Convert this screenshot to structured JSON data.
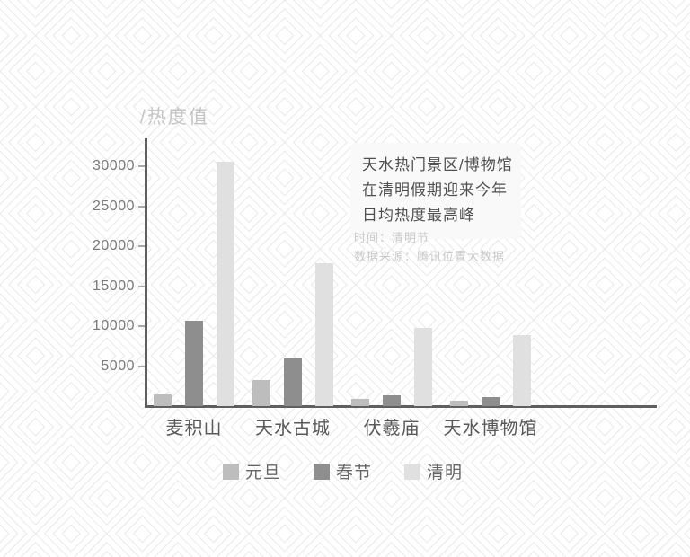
{
  "colors": {
    "background": "#ffffff",
    "pattern_line": "#e9e9e9",
    "axis": "#5f5f5f",
    "tick": "#a8a8a8",
    "tick_label": "#7a7a7a",
    "category_label": "#595959",
    "title": "#c5c5c5",
    "legend_label": "#666666",
    "callout_bg": "#f9f9f9",
    "callout_text": "#4f4f4f",
    "meta_text": "#c9c9c9"
  },
  "chart_data": {
    "type": "bar",
    "title": "/热度值",
    "ylabel": "热度值",
    "categories": [
      "麦积山",
      "天水古城",
      "伏羲庙",
      "天水博物馆"
    ],
    "series": [
      {
        "name": "元旦",
        "color": "#bdbdbd",
        "values": [
          1500,
          3300,
          900,
          700
        ]
      },
      {
        "name": "春节",
        "color": "#8e8e8e",
        "values": [
          10700,
          5900,
          1400,
          1100
        ]
      },
      {
        "name": "清明",
        "color": "#e0e0e0",
        "values": [
          30600,
          17900,
          9800,
          8900
        ]
      }
    ],
    "yticks": [
      5000,
      10000,
      15000,
      20000,
      25000,
      30000
    ],
    "ylim": [
      0,
      33400
    ],
    "grid": false,
    "legend_position": "bottom"
  },
  "callout": {
    "lines": [
      "天水热门景区/博物馆",
      "在清明假期迎来今年",
      "日均热度最高峰"
    ]
  },
  "meta": {
    "lines": [
      "时间：清明节",
      "数据来源：腾讯位置大数据"
    ]
  }
}
